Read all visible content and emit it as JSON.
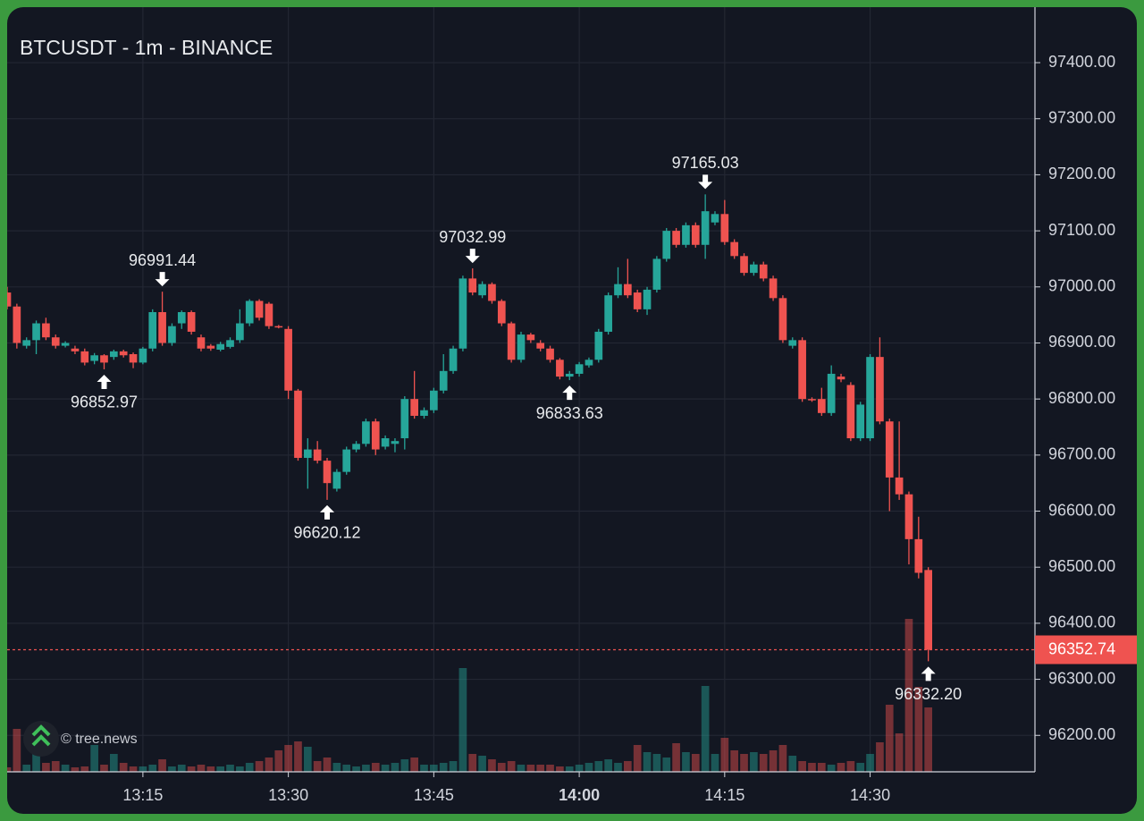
{
  "chart_data": {
    "type": "candlestick",
    "title": "BTCUSDT - 1m - BINANCE",
    "watermark": "© tree.news",
    "up_color": "#26a69a",
    "down_color": "#ef5350",
    "grid": true,
    "x": [
      "13:01",
      "13:02",
      "13:03",
      "13:04",
      "13:05",
      "13:06",
      "13:07",
      "13:08",
      "13:09",
      "13:10",
      "13:11",
      "13:12",
      "13:13",
      "13:14",
      "13:15",
      "13:16",
      "13:17",
      "13:18",
      "13:19",
      "13:20",
      "13:21",
      "13:22",
      "13:23",
      "13:24",
      "13:25",
      "13:26",
      "13:27",
      "13:28",
      "13:29",
      "13:30",
      "13:31",
      "13:32",
      "13:33",
      "13:34",
      "13:35",
      "13:36",
      "13:37",
      "13:38",
      "13:39",
      "13:40",
      "13:41",
      "13:42",
      "13:43",
      "13:44",
      "13:45",
      "13:46",
      "13:47",
      "13:48",
      "13:49",
      "13:50",
      "13:51",
      "13:52",
      "13:53",
      "13:54",
      "13:55",
      "13:56",
      "13:57",
      "13:58",
      "13:59",
      "14:00",
      "14:01",
      "14:02",
      "14:03",
      "14:04",
      "14:05",
      "14:06",
      "14:07",
      "14:08",
      "14:09",
      "14:10",
      "14:11",
      "14:12",
      "14:13",
      "14:14",
      "14:15",
      "14:16",
      "14:17",
      "14:18",
      "14:19",
      "14:20",
      "14:21",
      "14:22",
      "14:23",
      "14:24",
      "14:25",
      "14:26",
      "14:27",
      "14:28",
      "14:29",
      "14:30",
      "14:31",
      "14:32",
      "14:33",
      "14:34",
      "14:35",
      "14:36"
    ],
    "open": [
      96990,
      96965,
      96895,
      96905,
      96935,
      96910,
      96895,
      96890,
      96885,
      96868,
      96878,
      96875,
      96885,
      96880,
      96865,
      96890,
      96955,
      96900,
      96935,
      96955,
      96910,
      96895,
      96888,
      96893,
      96905,
      96935,
      96975,
      96970,
      96930,
      96925,
      96815,
      96695,
      96710,
      96690,
      96640,
      96670,
      96710,
      96720,
      96760,
      96715,
      96720,
      96730,
      96800,
      96770,
      96780,
      96815,
      96850,
      96890,
      97015,
      96985,
      97005,
      96975,
      96935,
      96870,
      96915,
      96900,
      96890,
      96870,
      96840,
      96845,
      96860,
      96870,
      96920,
      96985,
      97005,
      96990,
      96960,
      96995,
      97050,
      97100,
      97075,
      97110,
      97075,
      97115,
      97130,
      97080,
      97055,
      97025,
      97040,
      97015,
      96980,
      96895,
      96905,
      96800,
      96800,
      96775,
      96840,
      96825,
      96730,
      96730,
      96875,
      96760,
      96660,
      96630,
      96550,
      96495
    ],
    "high": [
      97000,
      96970,
      96910,
      96940,
      96945,
      96915,
      96903,
      96895,
      96890,
      96882,
      96880,
      96888,
      96888,
      96883,
      96893,
      96960,
      96991.44,
      96935,
      96958,
      96958,
      96915,
      96898,
      96902,
      96910,
      96960,
      96978,
      96978,
      96973,
      96932,
      96930,
      96818,
      96730,
      96725,
      96695,
      96675,
      96715,
      96725,
      96765,
      96765,
      96735,
      96730,
      96805,
      96850,
      96785,
      96820,
      96880,
      96895,
      97020,
      97032.99,
      97010,
      97008,
      96978,
      96938,
      96920,
      96918,
      96905,
      96895,
      96873,
      96850,
      96866,
      96874,
      96925,
      96990,
      97035,
      97050,
      96995,
      97000,
      97055,
      97105,
      97105,
      97115,
      97115,
      97165.03,
      97135,
      97155,
      97085,
      97060,
      97045,
      97045,
      97020,
      96985,
      96910,
      96910,
      96803,
      96820,
      96860,
      96845,
      96830,
      96795,
      96880,
      96910,
      96765,
      96760,
      96635,
      96590,
      96500
    ],
    "low": [
      96960,
      96890,
      96890,
      96880,
      96905,
      96890,
      96892,
      96880,
      96860,
      96862,
      96852.97,
      96870,
      96874,
      96855,
      96862,
      96885,
      96895,
      96895,
      96925,
      96915,
      96885,
      96886,
      96885,
      96890,
      96900,
      96930,
      96940,
      96925,
      96926,
      96800,
      96690,
      96640,
      96685,
      96620.12,
      96635,
      96665,
      96705,
      96715,
      96700,
      96710,
      96705,
      96710,
      96765,
      96765,
      96775,
      96810,
      96845,
      96885,
      96985,
      96980,
      96970,
      96930,
      96865,
      96865,
      96900,
      96885,
      96865,
      96835,
      96833.63,
      96840,
      96856,
      96865,
      96915,
      96980,
      96980,
      96955,
      96950,
      96990,
      97045,
      97070,
      97070,
      97070,
      97050,
      97110,
      97075,
      97050,
      97020,
      97020,
      97010,
      96975,
      96900,
      96890,
      96795,
      96795,
      96770,
      96770,
      96830,
      96725,
      96725,
      96725,
      96755,
      96600,
      96620,
      96505,
      96480,
      96332.2
    ],
    "close": [
      96965,
      96900,
      96905,
      96935,
      96910,
      96895,
      96900,
      96885,
      96865,
      96878,
      96865,
      96885,
      96878,
      96865,
      96890,
      96955,
      96900,
      96930,
      96955,
      96920,
      96890,
      96890,
      96898,
      96905,
      96935,
      96975,
      96945,
      96930,
      96928,
      96815,
      96695,
      96710,
      96690,
      96650,
      96670,
      96710,
      96720,
      96760,
      96710,
      96730,
      96725,
      96800,
      96770,
      96780,
      96815,
      96850,
      96890,
      97015,
      96990,
      97005,
      96975,
      96935,
      96870,
      96915,
      96905,
      96890,
      96870,
      96840,
      96845,
      96862,
      96870,
      96920,
      96985,
      97005,
      96985,
      96960,
      96995,
      97050,
      97100,
      97075,
      97110,
      97075,
      97135,
      97130,
      97080,
      97055,
      97025,
      97040,
      97015,
      96980,
      96905,
      96905,
      96800,
      96798,
      96775,
      96845,
      96835,
      96730,
      96790,
      96875,
      96760,
      96660,
      96630,
      96550,
      96490,
      96352.74
    ],
    "volume": [
      5,
      48,
      8,
      22,
      10,
      12,
      8,
      5,
      6,
      30,
      8,
      20,
      10,
      6,
      6,
      8,
      14,
      6,
      8,
      6,
      8,
      6,
      6,
      8,
      6,
      10,
      12,
      16,
      24,
      30,
      34,
      28,
      12,
      16,
      10,
      8,
      6,
      8,
      10,
      8,
      10,
      14,
      16,
      8,
      8,
      10,
      12,
      116,
      20,
      18,
      14,
      10,
      12,
      8,
      8,
      8,
      8,
      6,
      6,
      8,
      10,
      12,
      14,
      10,
      12,
      30,
      22,
      20,
      16,
      32,
      22,
      20,
      96,
      20,
      38,
      24,
      20,
      22,
      20,
      24,
      30,
      18,
      12,
      10,
      10,
      8,
      10,
      12,
      10,
      20,
      33,
      75,
      43,
      171,
      95,
      72
    ],
    "vlim": [
      0,
      300
    ],
    "xlim": [
      "13:01",
      "14:47"
    ],
    "xticks": [
      "13:15",
      "13:30",
      "13:45",
      "14:00",
      "14:15",
      "14:30"
    ],
    "ylim": [
      96135,
      97499
    ],
    "yticks": [
      {
        "value": 96200,
        "label": "96200.00"
      },
      {
        "value": 96300,
        "label": "96300.00"
      },
      {
        "value": 96400,
        "label": "96400.00"
      },
      {
        "value": 96500,
        "label": "96500.00"
      },
      {
        "value": 96600,
        "label": "96600.00"
      },
      {
        "value": 96700,
        "label": "96700.00"
      },
      {
        "value": 96800,
        "label": "96800.00"
      },
      {
        "value": 96900,
        "label": "96900.00"
      },
      {
        "value": 97000,
        "label": "97000.00"
      },
      {
        "value": 97100,
        "label": "97100.00"
      },
      {
        "value": 97200,
        "label": "97200.00"
      },
      {
        "value": 97300,
        "label": "97300.00"
      },
      {
        "value": 97400,
        "label": "97400.00"
      }
    ],
    "last_price": 96352.74,
    "high_labels": [
      {
        "x": "13:17",
        "value": 96991.44
      },
      {
        "x": "13:49",
        "value": 97032.99
      },
      {
        "x": "14:13",
        "value": 97165.03
      }
    ],
    "low_labels": [
      {
        "x": "13:11",
        "value": 96852.97
      },
      {
        "x": "13:34",
        "value": 96620.12
      },
      {
        "x": "13:59",
        "value": 96833.63
      },
      {
        "x": "14:36",
        "value": {
          "value": 96332.2,
          "label": "96332.20"
        }
      }
    ]
  }
}
